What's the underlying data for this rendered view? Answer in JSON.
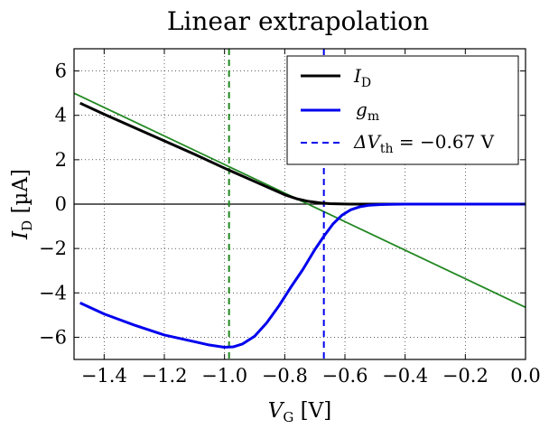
{
  "chart_data": {
    "type": "line",
    "title": "Linear extrapolation",
    "xlabel": {
      "main": "V",
      "sub": "G",
      "unit": " [V]"
    },
    "ylabel": {
      "main": "I",
      "sub": "D",
      "unit": " [µA]"
    },
    "xlim": [
      -1.5,
      0.0
    ],
    "ylim": [
      -7,
      7
    ],
    "xticks": [
      -1.4,
      -1.2,
      -1.0,
      -0.8,
      -0.6,
      -0.4,
      -0.2,
      0.0
    ],
    "xtick_labels": [
      "−1.4",
      "−1.2",
      "−1.0",
      "−0.8",
      "−0.6",
      "−0.4",
      "−0.2",
      "0.0"
    ],
    "yticks": [
      -6,
      -4,
      -2,
      0,
      2,
      4,
      6
    ],
    "ytick_labels": [
      "−6",
      "−4",
      "−2",
      "0",
      "2",
      "4",
      "6"
    ],
    "grid": true,
    "legend_position": "top-right",
    "series": [
      {
        "name": "I_D",
        "legend": {
          "main": "I",
          "sub": "D"
        },
        "color": "#000000",
        "x": [
          -1.48,
          -1.4,
          -1.3,
          -1.2,
          -1.1,
          -1.0,
          -0.9,
          -0.85,
          -0.8,
          -0.76,
          -0.72,
          -0.68,
          -0.65,
          -0.62,
          -0.58,
          -0.5,
          -0.4,
          -0.3,
          -0.2,
          -0.1,
          0.0
        ],
        "y": [
          4.55,
          4.05,
          3.45,
          2.85,
          2.25,
          1.62,
          1.02,
          0.72,
          0.42,
          0.24,
          0.12,
          0.05,
          0.02,
          0.01,
          0.0,
          0.0,
          0.0,
          0.0,
          0.0,
          0.0,
          0.0
        ]
      },
      {
        "name": "g_m",
        "legend": {
          "main": "g",
          "sub": "m"
        },
        "color": "#0000ee",
        "x": [
          -1.48,
          -1.4,
          -1.3,
          -1.2,
          -1.1,
          -1.05,
          -1.0,
          -0.97,
          -0.94,
          -0.9,
          -0.86,
          -0.82,
          -0.78,
          -0.74,
          -0.7,
          -0.67,
          -0.64,
          -0.61,
          -0.58,
          -0.55,
          -0.52,
          -0.48,
          -0.45,
          -0.4,
          -0.3,
          -0.2,
          -0.1,
          0.0
        ],
        "y": [
          -4.45,
          -4.95,
          -5.45,
          -5.9,
          -6.2,
          -6.35,
          -6.45,
          -6.43,
          -6.3,
          -5.95,
          -5.35,
          -4.6,
          -3.75,
          -2.95,
          -2.05,
          -1.45,
          -0.9,
          -0.5,
          -0.25,
          -0.12,
          -0.05,
          -0.02,
          -0.01,
          0.0,
          0.0,
          0.0,
          0.0,
          0.0
        ]
      }
    ],
    "fit_line": {
      "name": "linear extrapolation",
      "color": "#228822",
      "x": [
        -1.5,
        0.0
      ],
      "y": [
        5.0,
        -4.65
      ]
    },
    "vlines": [
      {
        "name": "gm_max_position",
        "x": -0.985,
        "color": "#228822",
        "style": "dashed"
      },
      {
        "name": "delta_vth",
        "x": -0.67,
        "color": "#0000ee",
        "style": "dashed",
        "legend": {
          "prefix": "ΔV",
          "sub": "th",
          "suffix": " = −0.67 V"
        }
      }
    ],
    "hline": {
      "name": "zero_line",
      "y": 0,
      "color": "#000000"
    }
  }
}
